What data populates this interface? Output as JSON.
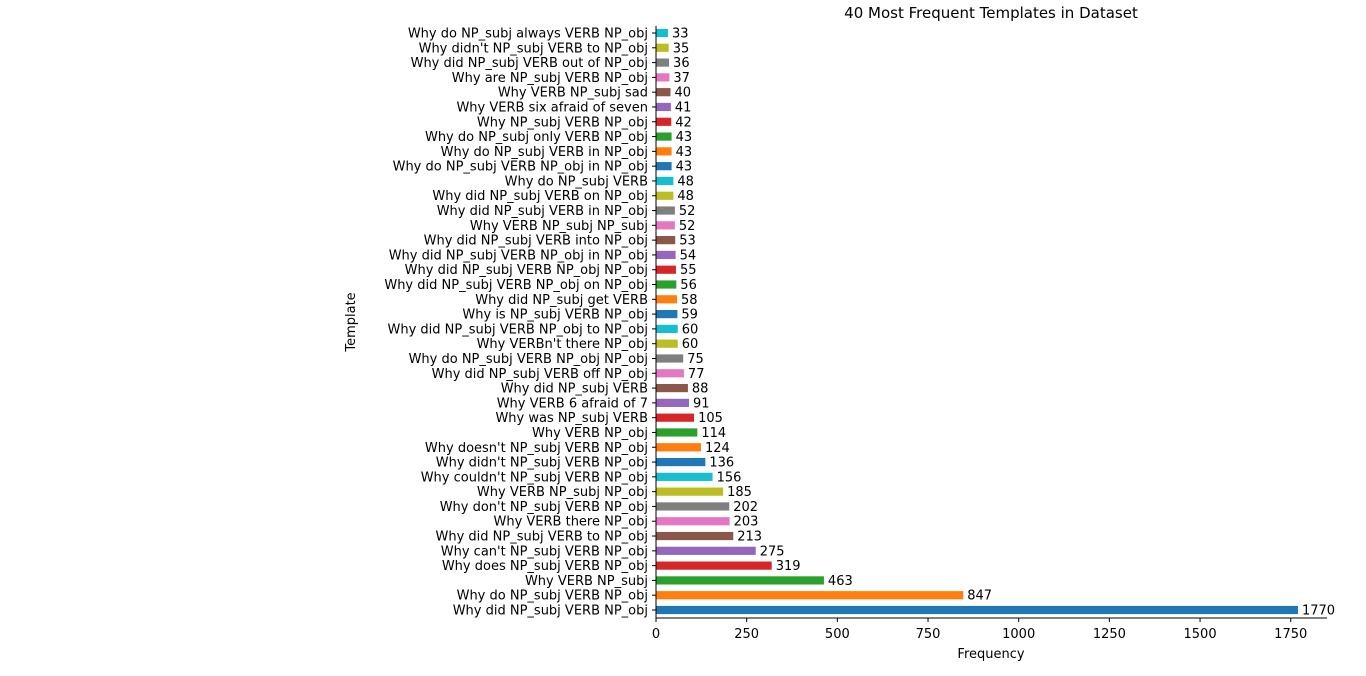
{
  "chart_data": {
    "type": "bar",
    "orientation": "horizontal",
    "title": "40 Most Frequent Templates in Dataset",
    "xlabel": "Frequency",
    "ylabel": "Template",
    "xlim": [
      0,
      1850
    ],
    "xticks": [
      0,
      250,
      500,
      750,
      1000,
      1250,
      1500,
      1750
    ],
    "grid": false,
    "categories": [
      "Why did NP_subj VERB NP_obj",
      "Why do NP_subj VERB NP_obj",
      "Why VERB NP_subj",
      "Why does NP_subj VERB NP_obj",
      "Why can't NP_subj VERB NP_obj",
      "Why did NP_subj VERB to NP_obj",
      "Why VERB there NP_obj",
      "Why don't NP_subj VERB NP_obj",
      "Why VERB NP_subj NP_obj",
      "Why couldn't NP_subj VERB NP_obj",
      "Why didn't NP_subj VERB NP_obj",
      "Why doesn't NP_subj VERB NP_obj",
      "Why VERB NP_obj",
      "Why was NP_subj VERB",
      "Why VERB 6 afraid of 7",
      "Why did NP_subj VERB",
      "Why did NP_subj VERB off NP_obj",
      "Why do NP_subj VERB NP_obj NP_obj",
      "Why VERBn't there NP_obj",
      "Why did NP_subj VERB NP_obj to NP_obj",
      "Why is NP_subj VERB NP_obj",
      "Why did NP_subj get VERB",
      "Why did NP_subj VERB NP_obj on NP_obj",
      "Why did NP_subj VERB NP_obj NP_obj",
      "Why did NP_subj VERB NP_obj in NP_obj",
      "Why did NP_subj VERB into NP_obj",
      "Why VERB NP_subj NP_subj",
      "Why did NP_subj VERB in NP_obj",
      "Why did NP_subj VERB on NP_obj",
      "Why do NP_subj VERB",
      "Why do NP_subj VERB NP_obj in NP_obj",
      "Why do NP_subj VERB in NP_obj",
      "Why do NP_subj only VERB NP_obj",
      "Why NP_subj VERB NP_obj",
      "Why VERB six afraid of seven",
      "Why VERB NP_subj sad",
      "Why are NP_subj VERB NP_obj",
      "Why did NP_subj VERB out of NP_obj",
      "Why didn't NP_subj VERB to NP_obj",
      "Why do NP_subj always VERB NP_obj"
    ],
    "values": [
      1770,
      847,
      463,
      319,
      275,
      213,
      203,
      202,
      185,
      156,
      136,
      124,
      114,
      105,
      91,
      88,
      77,
      75,
      60,
      60,
      59,
      58,
      56,
      55,
      54,
      53,
      52,
      52,
      48,
      48,
      43,
      43,
      43,
      42,
      41,
      40,
      37,
      36,
      35,
      33
    ],
    "colors": [
      "#1f77b4",
      "#ff7f0e",
      "#2ca02c",
      "#d62728",
      "#9467bd",
      "#8c564b",
      "#e377c2",
      "#7f7f7f",
      "#bcbd22",
      "#17becf"
    ]
  }
}
